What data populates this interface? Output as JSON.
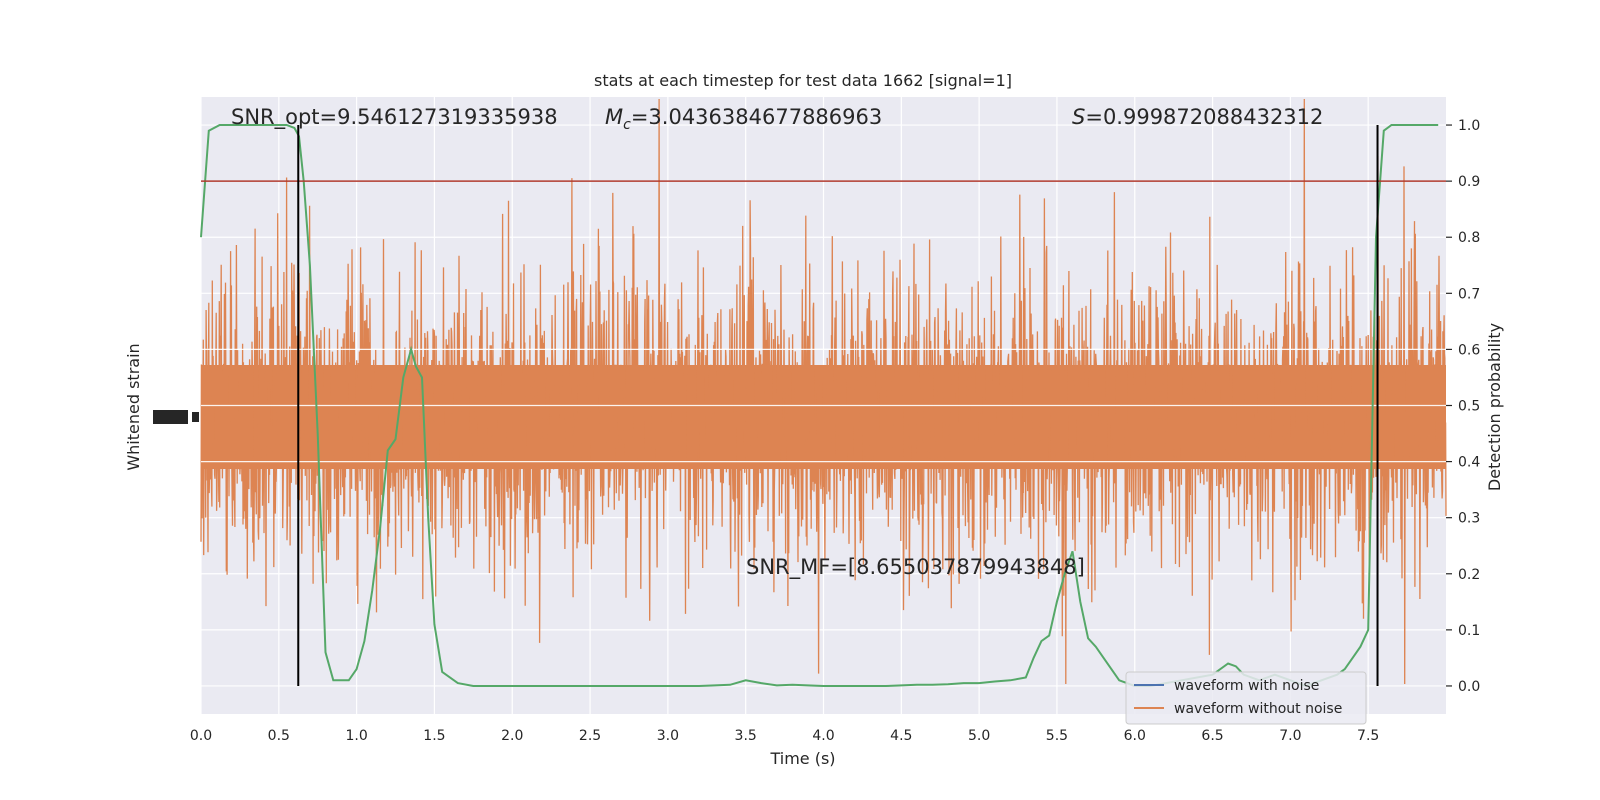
{
  "chart_data": {
    "type": "line",
    "title": "stats at each timestep for test data 1662 [signal=1]",
    "xlabel": "Time (s)",
    "ylabel_left": "Whitened strain",
    "ylabel_right": "Detection probability",
    "xlim": [
      0,
      8
    ],
    "ylim_right": [
      -0.05,
      1.05
    ],
    "x_ticks": [
      "0.0",
      "0.5",
      "1.0",
      "1.5",
      "2.0",
      "2.5",
      "3.0",
      "3.5",
      "4.0",
      "4.5",
      "5.0",
      "5.5",
      "6.0",
      "6.5",
      "7.0",
      "7.5"
    ],
    "x_tick_values": [
      0,
      0.5,
      1,
      1.5,
      2,
      2.5,
      3,
      3.5,
      4,
      4.5,
      5,
      5.5,
      6,
      6.5,
      7,
      7.5
    ],
    "y_ticks_right": [
      "0.0",
      "0.1",
      "0.2",
      "0.3",
      "0.4",
      "0.5",
      "0.6",
      "0.7",
      "0.8",
      "0.9",
      "1.0"
    ],
    "y_tick_values_right": [
      0,
      0.1,
      0.2,
      0.3,
      0.4,
      0.5,
      0.6,
      0.7,
      0.8,
      0.9,
      1.0
    ],
    "threshold": 0.9,
    "vlines": [
      0.625,
      7.56
    ],
    "annotations": {
      "snr_opt": "SNR_opt=9.546127319335938",
      "mc_symbol": "M",
      "mc_sub": "c",
      "mc_value": "=3.0436384677886963",
      "s_symbol": "S",
      "s_value": "=0.999872088432312",
      "snr_mf": "SNR_MF=[8.655037879943848]"
    },
    "series": [
      {
        "name": "waveform with noise",
        "color": "#4c72b0"
      },
      {
        "name": "waveform without noise",
        "color": "#dd8452"
      }
    ],
    "detection": {
      "color": "#55a868",
      "x": [
        0,
        0.05,
        0.12,
        0.2,
        0.3,
        0.4,
        0.5,
        0.55,
        0.6,
        0.63,
        0.66,
        0.7,
        0.75,
        0.8,
        0.85,
        0.9,
        0.95,
        1.0,
        1.05,
        1.1,
        1.15,
        1.2,
        1.25,
        1.3,
        1.35,
        1.38,
        1.42,
        1.46,
        1.5,
        1.55,
        1.65,
        1.75,
        1.85,
        2.0,
        2.2,
        2.4,
        2.6,
        2.8,
        3.0,
        3.2,
        3.4,
        3.5,
        3.6,
        3.7,
        3.8,
        4.0,
        4.2,
        4.4,
        4.6,
        4.7,
        4.8,
        4.9,
        5.0,
        5.1,
        5.2,
        5.3,
        5.35,
        5.4,
        5.45,
        5.5,
        5.55,
        5.6,
        5.65,
        5.7,
        5.75,
        5.8,
        5.9,
        6.0,
        6.1,
        6.2,
        6.3,
        6.4,
        6.5,
        6.6,
        6.65,
        6.7,
        6.8,
        6.9,
        7.0,
        7.1,
        7.2,
        7.3,
        7.35,
        7.4,
        7.45,
        7.5,
        7.55,
        7.6,
        7.65,
        7.7,
        7.8,
        7.95
      ],
      "y": [
        0.8,
        0.99,
        1.0,
        1.0,
        1.0,
        1.0,
        1.0,
        1.0,
        0.995,
        0.98,
        0.9,
        0.75,
        0.45,
        0.06,
        0.01,
        0.01,
        0.01,
        0.03,
        0.08,
        0.17,
        0.28,
        0.42,
        0.44,
        0.55,
        0.6,
        0.57,
        0.55,
        0.3,
        0.11,
        0.025,
        0.005,
        0.0,
        0.0,
        0.0,
        0.0,
        0.0,
        0.0,
        0.0,
        0.0,
        0.0,
        0.002,
        0.01,
        0.005,
        0.001,
        0.002,
        0.0,
        0.0,
        0.0,
        0.002,
        0.002,
        0.003,
        0.005,
        0.005,
        0.008,
        0.01,
        0.015,
        0.05,
        0.08,
        0.09,
        0.15,
        0.2,
        0.24,
        0.15,
        0.085,
        0.07,
        0.05,
        0.01,
        0.0,
        0.0,
        0.005,
        0.01,
        0.015,
        0.02,
        0.04,
        0.035,
        0.02,
        0.01,
        0.02,
        0.01,
        0.0,
        0.01,
        0.02,
        0.03,
        0.05,
        0.07,
        0.1,
        0.8,
        0.99,
        1.0,
        1.0,
        1.0,
        1.0
      ]
    },
    "legend_position": "lower-right",
    "grid": true
  }
}
